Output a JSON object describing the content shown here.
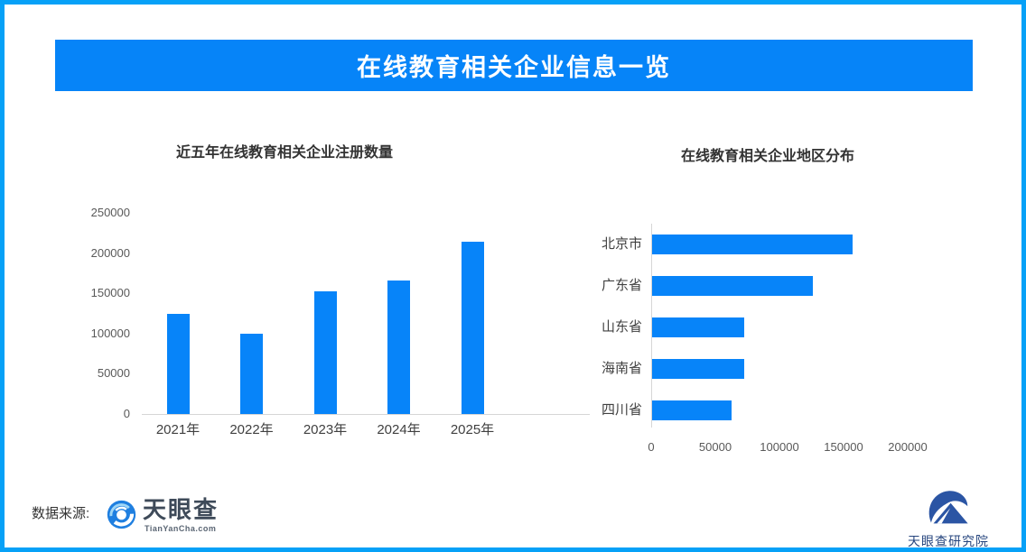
{
  "page": {
    "border_color": "#07A1F7",
    "background_color": "#FFFFFF",
    "accent_blue": "#0784F9"
  },
  "header": {
    "title": "在线教育相关企业信息一览",
    "background_color": "#0684F8",
    "text_color": "#FFFFFF"
  },
  "chart_data": [
    {
      "type": "bar",
      "orientation": "vertical",
      "title": "近五年在线教育相关企业注册数量",
      "categories": [
        "2021年",
        "2022年",
        "2023年",
        "2024年",
        "2025年"
      ],
      "values": [
        124000,
        100000,
        153000,
        166000,
        214000
      ],
      "xlabel": "",
      "ylabel": "",
      "ylim": [
        0,
        250000
      ],
      "yticks": [
        0,
        50000,
        100000,
        150000,
        200000,
        250000
      ],
      "grid": false,
      "legend": false,
      "bar_color": "#0784F9"
    },
    {
      "type": "bar",
      "orientation": "horizontal",
      "title": "在线教育相关企业地区分布",
      "categories": [
        "北京市",
        "广东省",
        "山东省",
        "海南省",
        "四川省"
      ],
      "values": [
        156000,
        125000,
        72000,
        72000,
        62000
      ],
      "xlabel": "",
      "ylabel": "",
      "xlim": [
        0,
        230000
      ],
      "xticks": [
        0,
        50000,
        100000,
        150000,
        200000
      ],
      "grid": false,
      "legend": false,
      "bar_color": "#0784F9"
    }
  ],
  "footer": {
    "source_label": "数据来源:",
    "tianyancha_logo": {
      "name": "天眼查",
      "domain": "TianYanCha.com"
    },
    "research_logo": {
      "name": "天眼查研究院"
    }
  }
}
